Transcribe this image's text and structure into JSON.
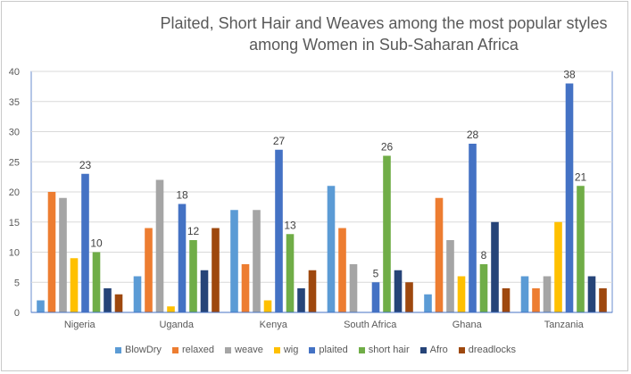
{
  "chart_data": {
    "type": "bar",
    "title": "Plaited, Short Hair and Weaves among the most popular styles among Women in Sub-Saharan Africa",
    "categories": [
      "Nigeria",
      "Uganda",
      "Kenya",
      "South Africa",
      "Ghana",
      "Tanzania"
    ],
    "ylim": [
      0,
      40
    ],
    "yticks": [
      0,
      5,
      10,
      15,
      20,
      25,
      30,
      35,
      40
    ],
    "grid": true,
    "legend_position": "bottom",
    "series": [
      {
        "name": "BlowDry",
        "color": "#5b9bd5",
        "values": [
          2,
          6,
          17,
          21,
          3,
          6
        ]
      },
      {
        "name": "relaxed",
        "color": "#ed7d31",
        "values": [
          20,
          14,
          8,
          14,
          19,
          4
        ]
      },
      {
        "name": "weave",
        "color": "#a5a5a5",
        "values": [
          19,
          22,
          17,
          8,
          12,
          6
        ]
      },
      {
        "name": "wig",
        "color": "#ffc000",
        "values": [
          9,
          1,
          2,
          0,
          6,
          15
        ]
      },
      {
        "name": "plaited",
        "color": "#4472c4",
        "values": [
          23,
          18,
          27,
          5,
          28,
          38
        ],
        "labels": [
          "23",
          "18",
          "27",
          "5",
          "28",
          "38"
        ]
      },
      {
        "name": "short hair",
        "color": "#70ad47",
        "values": [
          10,
          12,
          13,
          26,
          8,
          21
        ],
        "labels": [
          "10",
          "12",
          "13",
          "26",
          "8",
          "21"
        ]
      },
      {
        "name": "Afro",
        "color": "#264478",
        "values": [
          4,
          7,
          4,
          7,
          15,
          6
        ]
      },
      {
        "name": "dreadlocks",
        "color": "#9e480e",
        "values": [
          3,
          14,
          7,
          5,
          4,
          4
        ]
      }
    ]
  }
}
